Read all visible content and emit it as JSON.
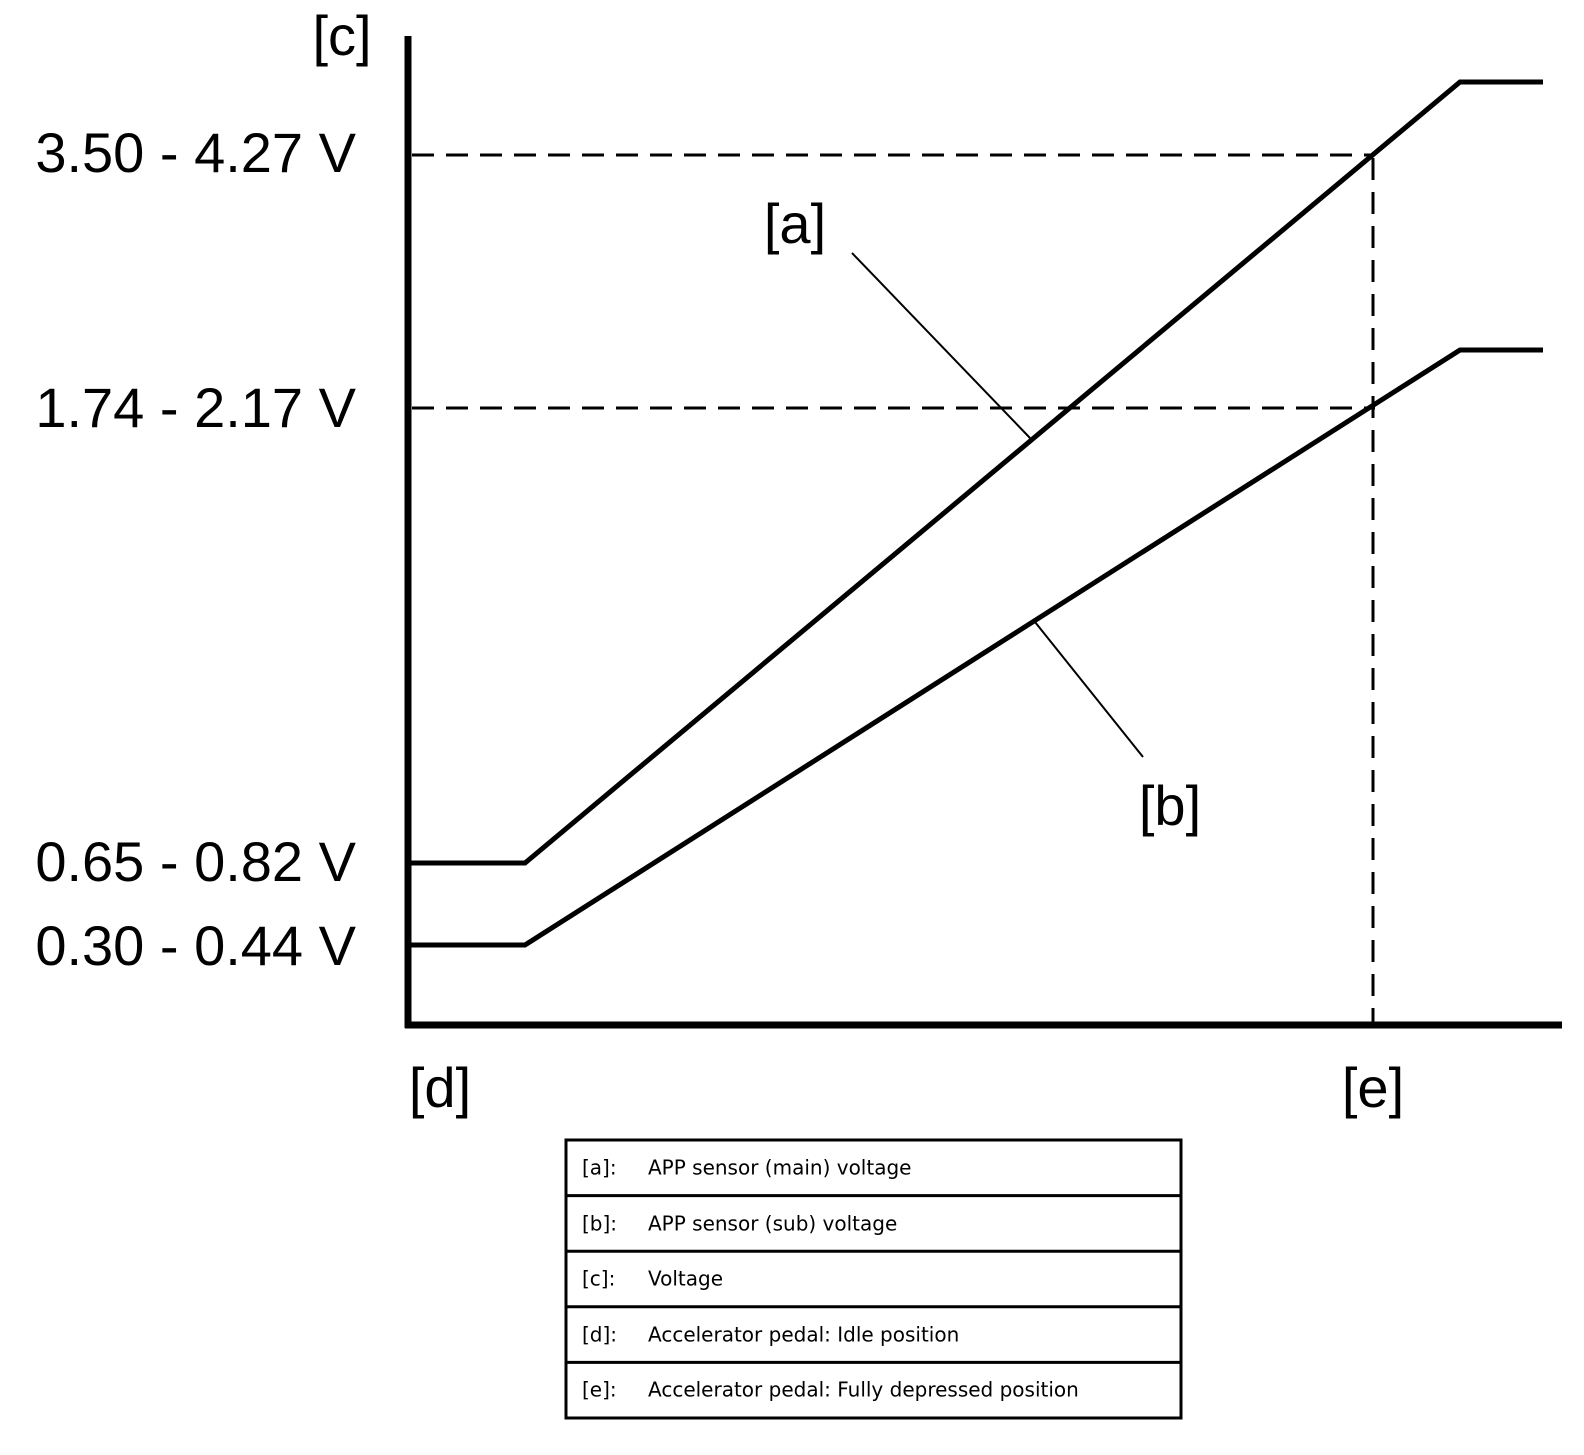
{
  "axis_labels": {
    "y": "[c]",
    "x_start": "[d]",
    "x_end": "[e]"
  },
  "voltage_labels": [
    "3.50 - 4.27 V",
    "1.74 - 2.17 V",
    "0.65 - 0.82 V",
    "0.30 - 0.44 V"
  ],
  "curve_labels": [
    "[a]",
    "[b]"
  ],
  "legend": {
    "rows": [
      {
        "key": "[a]:",
        "text": "APP sensor (main) voltage"
      },
      {
        "key": "[b]:",
        "text": "APP sensor (sub) voltage"
      },
      {
        "key": "[c]:",
        "text": "Voltage"
      },
      {
        "key": "[d]:",
        "text": "Accelerator pedal: Idle position"
      },
      {
        "key": "[e]:",
        "text": "Accelerator pedal: Fully depressed position"
      }
    ]
  }
}
